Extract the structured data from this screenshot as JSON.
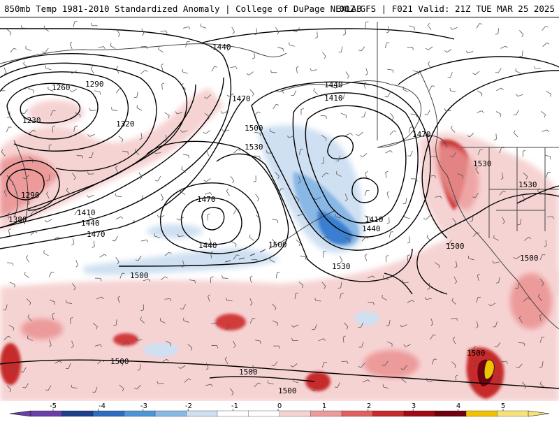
{
  "header": {
    "title_left": "850mb Temp 1981-2010 Standardized Anomaly | College of DuPage NEXLAB",
    "title_right": "00Z GFS | F021 Valid: 21Z TUE MAR 25 2025"
  },
  "colors": {
    "cold_strong": "#3a7fd0",
    "cold_mid": "#8ab8e6",
    "cold_light": "#cfe0f2",
    "warm_light": "#f6d3d3",
    "warm_mid": "#ec9a9a",
    "warm_strong": "#d23a3a",
    "warm_extreme": "#9e0b16",
    "extreme_5": "#f2c200",
    "contour": "#000000",
    "coast": "#444444"
  },
  "contour_labels": [
    "1440",
    "1260",
    "1290",
    "1230",
    "1320",
    "1290",
    "1380",
    "1410",
    "1440",
    "1470",
    "1470",
    "1500",
    "1530",
    "1470",
    "1440",
    "1500",
    "1500",
    "1440",
    "1410",
    "1470",
    "1410",
    "1440",
    "1530",
    "1500",
    "1530",
    "1530",
    "1500",
    "1500",
    "1500",
    "1500",
    "1500"
  ],
  "colorbar": {
    "ticks": [
      "-5",
      "-4",
      "-3",
      "-2",
      "-1",
      "0",
      "1",
      "2",
      "3",
      "4",
      "5"
    ],
    "segments": [
      "#6a3fa8",
      "#1e3f8a",
      "#2d6cc0",
      "#4c95d6",
      "#8ab8e6",
      "#cfe0f2",
      "#ffffff",
      "#ffffff",
      "#f6d3d3",
      "#ec9a9a",
      "#e06060",
      "#c62a2a",
      "#9e0b16",
      "#700010",
      "#f2c200",
      "#f7e27a"
    ]
  }
}
